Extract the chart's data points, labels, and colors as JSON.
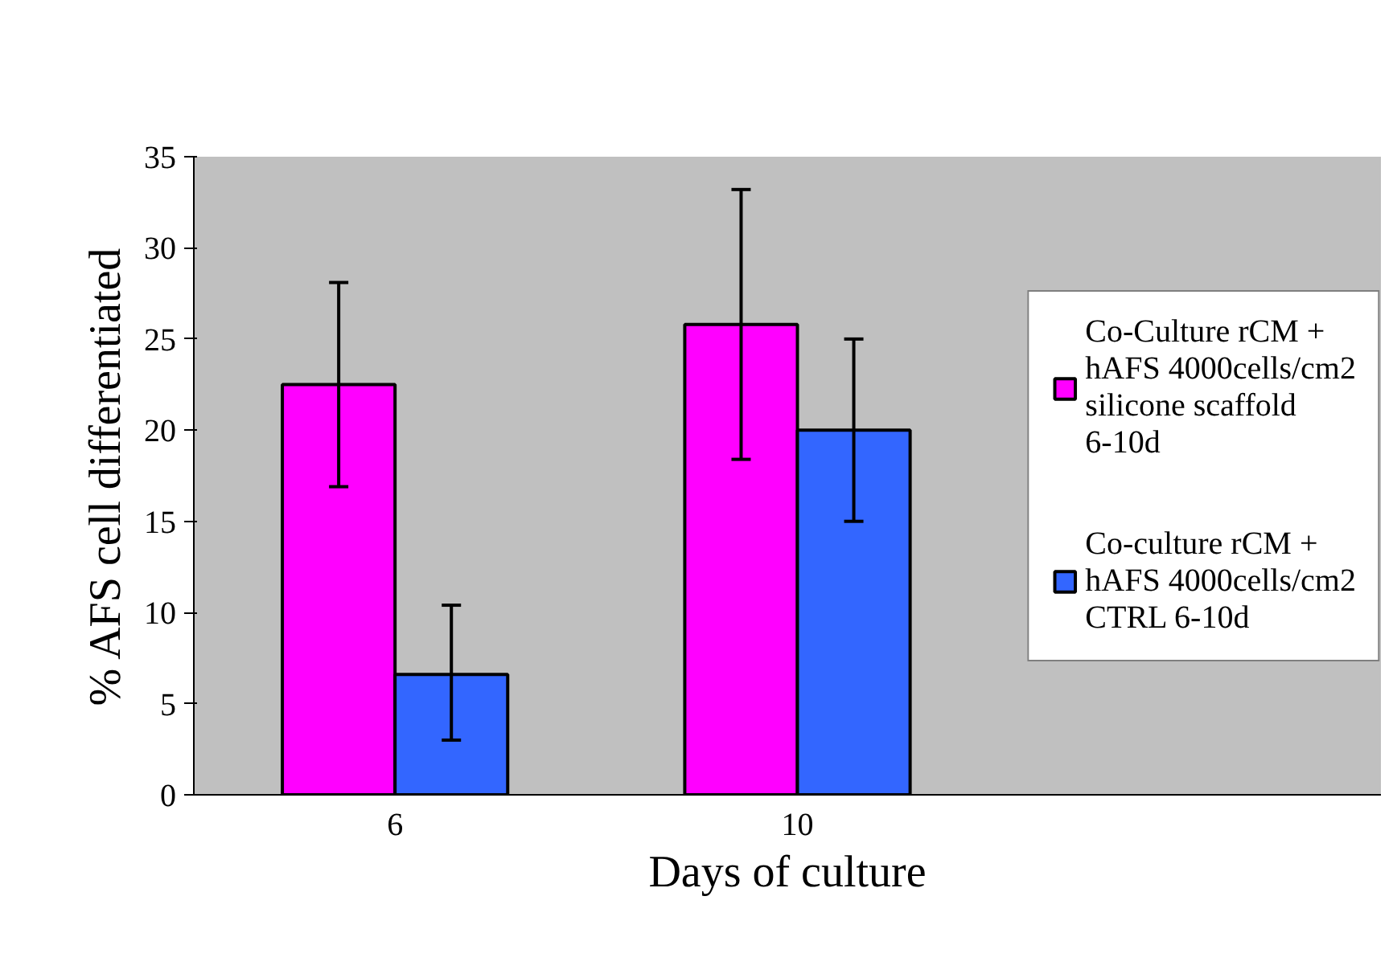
{
  "chart_data": {
    "type": "bar",
    "xlabel": "Days of culture",
    "ylabel": "% AFS cell differentiated",
    "categories": [
      "6",
      "10"
    ],
    "series": [
      {
        "name": "Co-Culture rCM + hAFS 4000cells/cm2 silicone scaffold 6-10d",
        "color": "#ff00ff",
        "values": [
          22.5,
          25.8
        ],
        "errors": [
          5.6,
          7.4
        ]
      },
      {
        "name": "Co-culture rCM + hAFS 4000cells/cm2 CTRL 6-10d",
        "color": "#3366ff",
        "values": [
          6.6,
          20.0
        ],
        "errors": [
          [
            3.0,
            10.4
          ],
          5.0
        ]
      }
    ],
    "ylim": [
      0,
      35
    ],
    "yticks": [
      0,
      5,
      10,
      15,
      20,
      25,
      30,
      35
    ],
    "grid": false,
    "legend": "right"
  }
}
